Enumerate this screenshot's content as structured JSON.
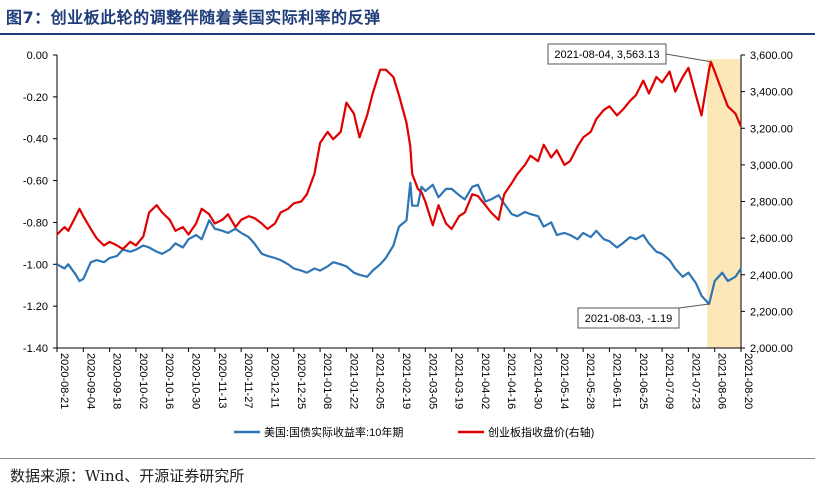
{
  "title": "图7：创业板此轮的调整伴随着美国实际利率的反弹",
  "source": "数据来源：Wind、开源证券研究所",
  "chart_data": {
    "type": "line",
    "x_ticks": [
      "2020-08-21",
      "2020-09-04",
      "2020-09-18",
      "2020-10-02",
      "2020-10-16",
      "2020-10-30",
      "2020-11-13",
      "2020-11-27",
      "2020-12-11",
      "2020-12-25",
      "2021-01-08",
      "2021-01-22",
      "2021-02-05",
      "2021-02-19",
      "2021-03-05",
      "2021-03-19",
      "2021-04-02",
      "2021-04-16",
      "2021-04-30",
      "2021-05-14",
      "2021-05-28",
      "2021-06-11",
      "2021-06-25",
      "2021-07-09",
      "2021-07-23",
      "2021-08-06",
      "2021-08-20"
    ],
    "x_range": [
      "2020-08-21",
      "2021-08-20"
    ],
    "left_axis": {
      "ylim": [
        -1.4,
        0.0
      ],
      "ticks": [
        0.0,
        -0.2,
        -0.4,
        -0.6,
        -0.8,
        -1.0,
        -1.2,
        -1.4
      ],
      "tick_labels": [
        "0.00",
        "-0.20",
        "-0.40",
        "-0.60",
        "-0.80",
        "-1.00",
        "-1.20",
        "-1.40"
      ]
    },
    "right_axis": {
      "ylim": [
        2000,
        3600
      ],
      "ticks": [
        3600,
        3400,
        3200,
        3000,
        2800,
        2600,
        2400,
        2200,
        2000
      ],
      "tick_labels": [
        "3,600.00",
        "3,400.00",
        "3,200.00",
        "3,000.00",
        "2,800.00",
        "2,600.00",
        "2,400.00",
        "2,200.00",
        "2,000.00"
      ]
    },
    "series": [
      {
        "name": "美国:国债实际收益率:10年期",
        "axis": "left",
        "color": "#2e75b6",
        "points": [
          [
            "2020-08-21",
            -1.0
          ],
          [
            "2020-08-25",
            -1.02
          ],
          [
            "2020-08-27",
            -1.0
          ],
          [
            "2020-08-31",
            -1.05
          ],
          [
            "2020-09-02",
            -1.08
          ],
          [
            "2020-09-04",
            -1.07
          ],
          [
            "2020-09-08",
            -0.99
          ],
          [
            "2020-09-11",
            -0.98
          ],
          [
            "2020-09-15",
            -0.99
          ],
          [
            "2020-09-18",
            -0.97
          ],
          [
            "2020-09-22",
            -0.96
          ],
          [
            "2020-09-25",
            -0.93
          ],
          [
            "2020-09-29",
            -0.94
          ],
          [
            "2020-10-02",
            -0.93
          ],
          [
            "2020-10-06",
            -0.91
          ],
          [
            "2020-10-09",
            -0.92
          ],
          [
            "2020-10-13",
            -0.94
          ],
          [
            "2020-10-16",
            -0.95
          ],
          [
            "2020-10-20",
            -0.93
          ],
          [
            "2020-10-23",
            -0.9
          ],
          [
            "2020-10-27",
            -0.92
          ],
          [
            "2020-10-30",
            -0.88
          ],
          [
            "2020-11-03",
            -0.86
          ],
          [
            "2020-11-06",
            -0.88
          ],
          [
            "2020-11-10",
            -0.79
          ],
          [
            "2020-11-13",
            -0.83
          ],
          [
            "2020-11-17",
            -0.84
          ],
          [
            "2020-11-20",
            -0.85
          ],
          [
            "2020-11-24",
            -0.83
          ],
          [
            "2020-11-27",
            -0.85
          ],
          [
            "2020-12-01",
            -0.87
          ],
          [
            "2020-12-04",
            -0.9
          ],
          [
            "2020-12-08",
            -0.95
          ],
          [
            "2020-12-11",
            -0.96
          ],
          [
            "2020-12-15",
            -0.97
          ],
          [
            "2020-12-18",
            -0.98
          ],
          [
            "2020-12-22",
            -1.0
          ],
          [
            "2020-12-25",
            -1.02
          ],
          [
            "2020-12-29",
            -1.03
          ],
          [
            "2021-01-01",
            -1.04
          ],
          [
            "2021-01-05",
            -1.02
          ],
          [
            "2021-01-08",
            -1.03
          ],
          [
            "2021-01-12",
            -1.01
          ],
          [
            "2021-01-15",
            -0.99
          ],
          [
            "2021-01-19",
            -1.0
          ],
          [
            "2021-01-22",
            -1.01
          ],
          [
            "2021-01-26",
            -1.04
          ],
          [
            "2021-01-29",
            -1.05
          ],
          [
            "2021-02-02",
            -1.06
          ],
          [
            "2021-02-05",
            -1.03
          ],
          [
            "2021-02-09",
            -1.0
          ],
          [
            "2021-02-12",
            -0.97
          ],
          [
            "2021-02-16",
            -0.91
          ],
          [
            "2021-02-19",
            -0.82
          ],
          [
            "2021-02-23",
            -0.79
          ],
          [
            "2021-02-25",
            -0.61
          ],
          [
            "2021-02-26",
            -0.72
          ],
          [
            "2021-03-01",
            -0.72
          ],
          [
            "2021-03-03",
            -0.63
          ],
          [
            "2021-03-05",
            -0.65
          ],
          [
            "2021-03-09",
            -0.62
          ],
          [
            "2021-03-12",
            -0.68
          ],
          [
            "2021-03-16",
            -0.64
          ],
          [
            "2021-03-19",
            -0.64
          ],
          [
            "2021-03-23",
            -0.67
          ],
          [
            "2021-03-26",
            -0.69
          ],
          [
            "2021-03-30",
            -0.63
          ],
          [
            "2021-04-02",
            -0.62
          ],
          [
            "2021-04-06",
            -0.7
          ],
          [
            "2021-04-09",
            -0.69
          ],
          [
            "2021-04-13",
            -0.67
          ],
          [
            "2021-04-16",
            -0.71
          ],
          [
            "2021-04-20",
            -0.76
          ],
          [
            "2021-04-23",
            -0.77
          ],
          [
            "2021-04-27",
            -0.75
          ],
          [
            "2021-04-30",
            -0.76
          ],
          [
            "2021-05-04",
            -0.77
          ],
          [
            "2021-05-07",
            -0.82
          ],
          [
            "2021-05-11",
            -0.8
          ],
          [
            "2021-05-14",
            -0.86
          ],
          [
            "2021-05-18",
            -0.85
          ],
          [
            "2021-05-21",
            -0.86
          ],
          [
            "2021-05-25",
            -0.88
          ],
          [
            "2021-05-28",
            -0.85
          ],
          [
            "2021-06-01",
            -0.87
          ],
          [
            "2021-06-04",
            -0.84
          ],
          [
            "2021-06-08",
            -0.88
          ],
          [
            "2021-06-11",
            -0.89
          ],
          [
            "2021-06-15",
            -0.92
          ],
          [
            "2021-06-18",
            -0.9
          ],
          [
            "2021-06-22",
            -0.87
          ],
          [
            "2021-06-25",
            -0.88
          ],
          [
            "2021-06-29",
            -0.86
          ],
          [
            "2021-07-02",
            -0.9
          ],
          [
            "2021-07-06",
            -0.94
          ],
          [
            "2021-07-09",
            -0.95
          ],
          [
            "2021-07-13",
            -0.98
          ],
          [
            "2021-07-16",
            -1.02
          ],
          [
            "2021-07-20",
            -1.06
          ],
          [
            "2021-07-23",
            -1.04
          ],
          [
            "2021-07-27",
            -1.09
          ],
          [
            "2021-07-30",
            -1.15
          ],
          [
            "2021-08-03",
            -1.19
          ],
          [
            "2021-08-06",
            -1.08
          ],
          [
            "2021-08-10",
            -1.04
          ],
          [
            "2021-08-13",
            -1.08
          ],
          [
            "2021-08-17",
            -1.06
          ],
          [
            "2021-08-20",
            -1.02
          ]
        ]
      },
      {
        "name": "创业板指收盘价(右轴)",
        "axis": "right",
        "color": "#e00000",
        "points": [
          [
            "2020-08-21",
            2620
          ],
          [
            "2020-08-25",
            2660
          ],
          [
            "2020-08-27",
            2640
          ],
          [
            "2020-08-31",
            2720
          ],
          [
            "2020-09-02",
            2760
          ],
          [
            "2020-09-04",
            2720
          ],
          [
            "2020-09-08",
            2650
          ],
          [
            "2020-09-11",
            2600
          ],
          [
            "2020-09-15",
            2560
          ],
          [
            "2020-09-18",
            2580
          ],
          [
            "2020-09-22",
            2560
          ],
          [
            "2020-09-25",
            2540
          ],
          [
            "2020-09-29",
            2580
          ],
          [
            "2020-10-02",
            2560
          ],
          [
            "2020-10-06",
            2610
          ],
          [
            "2020-10-09",
            2740
          ],
          [
            "2020-10-13",
            2780
          ],
          [
            "2020-10-16",
            2740
          ],
          [
            "2020-10-20",
            2700
          ],
          [
            "2020-10-23",
            2640
          ],
          [
            "2020-10-27",
            2660
          ],
          [
            "2020-10-30",
            2620
          ],
          [
            "2020-11-03",
            2680
          ],
          [
            "2020-11-06",
            2760
          ],
          [
            "2020-11-10",
            2730
          ],
          [
            "2020-11-13",
            2680
          ],
          [
            "2020-11-17",
            2700
          ],
          [
            "2020-11-20",
            2730
          ],
          [
            "2020-11-24",
            2660
          ],
          [
            "2020-11-27",
            2700
          ],
          [
            "2020-12-01",
            2720
          ],
          [
            "2020-12-04",
            2710
          ],
          [
            "2020-12-08",
            2680
          ],
          [
            "2020-12-11",
            2650
          ],
          [
            "2020-12-15",
            2680
          ],
          [
            "2020-12-18",
            2740
          ],
          [
            "2020-12-22",
            2760
          ],
          [
            "2020-12-25",
            2790
          ],
          [
            "2020-12-29",
            2800
          ],
          [
            "2021-01-01",
            2840
          ],
          [
            "2021-01-05",
            2950
          ],
          [
            "2021-01-08",
            3120
          ],
          [
            "2021-01-12",
            3180
          ],
          [
            "2021-01-15",
            3140
          ],
          [
            "2021-01-19",
            3180
          ],
          [
            "2021-01-22",
            3340
          ],
          [
            "2021-01-26",
            3280
          ],
          [
            "2021-01-29",
            3150
          ],
          [
            "2021-02-02",
            3270
          ],
          [
            "2021-02-05",
            3390
          ],
          [
            "2021-02-09",
            3520
          ],
          [
            "2021-02-12",
            3520
          ],
          [
            "2021-02-16",
            3480
          ],
          [
            "2021-02-19",
            3380
          ],
          [
            "2021-02-23",
            3230
          ],
          [
            "2021-02-25",
            3100
          ],
          [
            "2021-02-26",
            2950
          ],
          [
            "2021-03-01",
            2870
          ],
          [
            "2021-03-03",
            2850
          ],
          [
            "2021-03-05",
            2800
          ],
          [
            "2021-03-09",
            2670
          ],
          [
            "2021-03-12",
            2780
          ],
          [
            "2021-03-16",
            2680
          ],
          [
            "2021-03-19",
            2650
          ],
          [
            "2021-03-23",
            2720
          ],
          [
            "2021-03-26",
            2740
          ],
          [
            "2021-03-30",
            2840
          ],
          [
            "2021-04-02",
            2830
          ],
          [
            "2021-04-06",
            2780
          ],
          [
            "2021-04-09",
            2740
          ],
          [
            "2021-04-13",
            2700
          ],
          [
            "2021-04-16",
            2840
          ],
          [
            "2021-04-20",
            2900
          ],
          [
            "2021-04-23",
            2950
          ],
          [
            "2021-04-27",
            3000
          ],
          [
            "2021-04-30",
            3050
          ],
          [
            "2021-05-04",
            3020
          ],
          [
            "2021-05-07",
            3110
          ],
          [
            "2021-05-11",
            3040
          ],
          [
            "2021-05-14",
            3080
          ],
          [
            "2021-05-18",
            3000
          ],
          [
            "2021-05-21",
            3020
          ],
          [
            "2021-05-25",
            3100
          ],
          [
            "2021-05-28",
            3150
          ],
          [
            "2021-06-01",
            3180
          ],
          [
            "2021-06-04",
            3250
          ],
          [
            "2021-06-08",
            3300
          ],
          [
            "2021-06-11",
            3320
          ],
          [
            "2021-06-15",
            3270
          ],
          [
            "2021-06-18",
            3300
          ],
          [
            "2021-06-22",
            3350
          ],
          [
            "2021-06-25",
            3380
          ],
          [
            "2021-06-29",
            3460
          ],
          [
            "2021-07-02",
            3390
          ],
          [
            "2021-07-06",
            3480
          ],
          [
            "2021-07-09",
            3450
          ],
          [
            "2021-07-13",
            3510
          ],
          [
            "2021-07-16",
            3400
          ],
          [
            "2021-07-20",
            3480
          ],
          [
            "2021-07-23",
            3530
          ],
          [
            "2021-07-27",
            3380
          ],
          [
            "2021-07-30",
            3270
          ],
          [
            "2021-08-03",
            3520
          ],
          [
            "2021-08-04",
            3563.13
          ],
          [
            "2021-08-06",
            3510
          ],
          [
            "2021-08-10",
            3400
          ],
          [
            "2021-08-13",
            3320
          ],
          [
            "2021-08-17",
            3280
          ],
          [
            "2021-08-20",
            3210
          ]
        ]
      }
    ],
    "highlight_range": [
      "2021-08-02",
      "2021-08-20"
    ],
    "highlight_color": "#fbe7b8",
    "annotations": [
      {
        "text": "2021-08-04, 3,563.13",
        "series": 1,
        "x": "2021-08-04",
        "y": 3563.13
      },
      {
        "text": "2021-08-03, -1.19",
        "series": 0,
        "x": "2021-08-03",
        "y": -1.19
      }
    ],
    "legend_position": "bottom-center",
    "grid": false
  }
}
